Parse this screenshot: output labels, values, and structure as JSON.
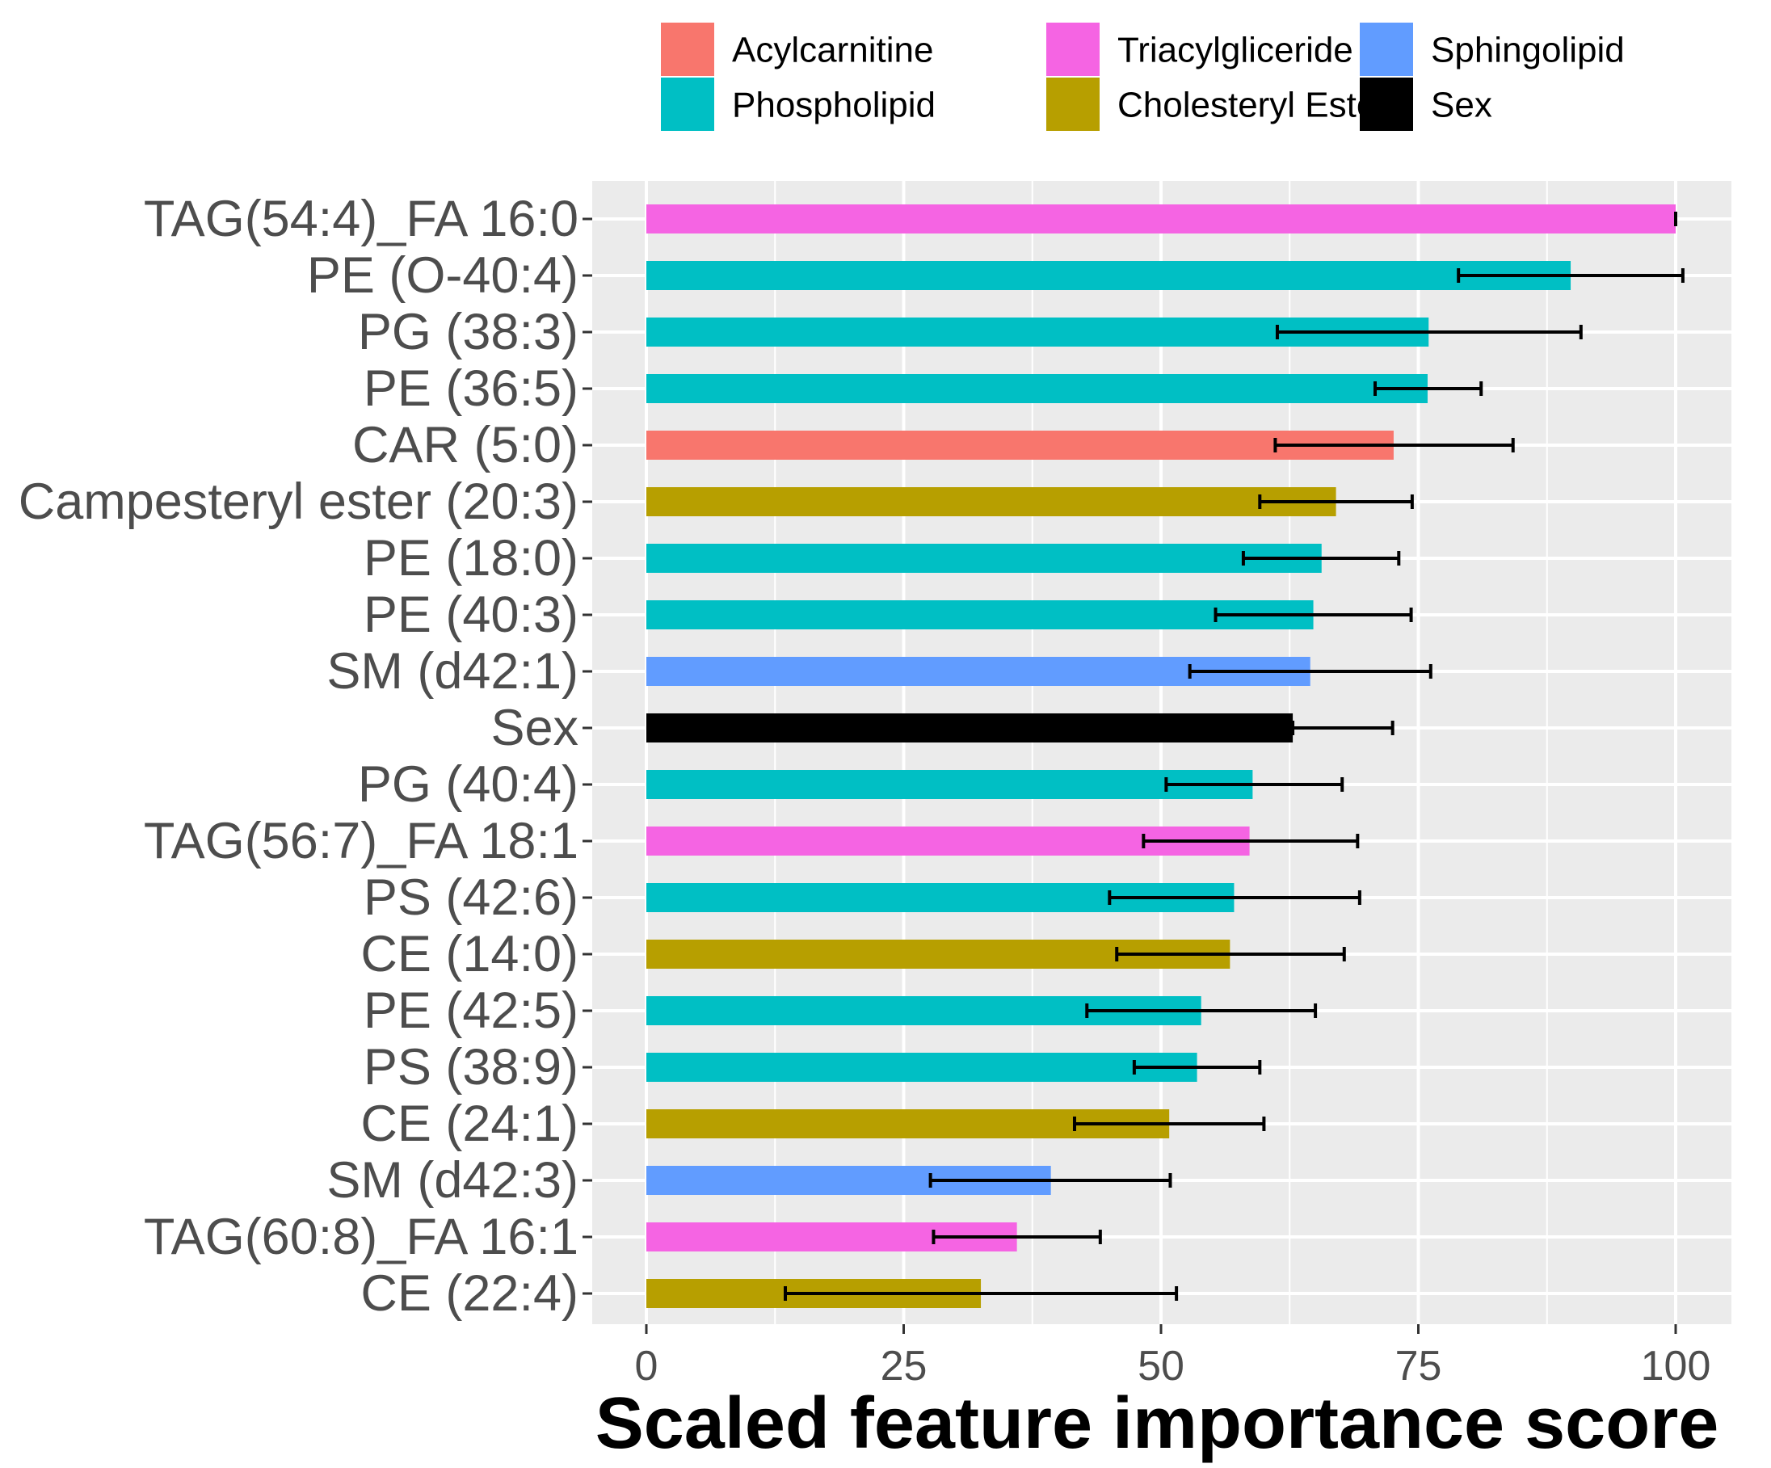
{
  "chart_data": {
    "type": "bar",
    "orientation": "horizontal",
    "title": "",
    "xlabel": "Scaled feature importance score",
    "ylabel": "",
    "xlim": [
      -5,
      106
    ],
    "xticks": [
      0,
      25,
      50,
      75,
      100
    ],
    "grid": true,
    "legend_position": "top",
    "legend": [
      {
        "name": "Acylcarnitine",
        "color": "#F8766D"
      },
      {
        "name": "Phospholipid",
        "color": "#00BFC4"
      },
      {
        "name": "Triacylgliceride",
        "color": "#F564E3"
      },
      {
        "name": "Cholesteryl Ester",
        "color": "#B79F00"
      },
      {
        "name": "Sphingolipid",
        "color": "#619CFF"
      },
      {
        "name": "Sex",
        "color": "#000000"
      }
    ],
    "bars": [
      {
        "label": "TAG(54:4)_FA 16:0",
        "value": 100,
        "err_low": 100,
        "err_high": 100,
        "category": "Triacylgliceride"
      },
      {
        "label": "PE (O-40:4)",
        "value": 89.8,
        "err_low": 78.9,
        "err_high": 100.7,
        "category": "Phospholipid"
      },
      {
        "label": "PG (38:3)",
        "value": 76.0,
        "err_low": 61.3,
        "err_high": 90.8,
        "category": "Phospholipid"
      },
      {
        "label": "PE (36:5)",
        "value": 75.9,
        "err_low": 70.8,
        "err_high": 81.1,
        "category": "Phospholipid"
      },
      {
        "label": "CAR (5:0)",
        "value": 72.6,
        "err_low": 61.1,
        "err_high": 84.2,
        "category": "Acylcarnitine"
      },
      {
        "label": "Campesteryl ester (20:3)",
        "value": 67.0,
        "err_low": 59.6,
        "err_high": 74.4,
        "category": "Cholesteryl Ester"
      },
      {
        "label": "PE (18:0)",
        "value": 65.6,
        "err_low": 58.0,
        "err_high": 73.1,
        "category": "Phospholipid"
      },
      {
        "label": "PE (40:3)",
        "value": 64.8,
        "err_low": 55.3,
        "err_high": 74.3,
        "category": "Phospholipid"
      },
      {
        "label": "SM (d42:1)",
        "value": 64.5,
        "err_low": 52.8,
        "err_high": 76.2,
        "category": "Sphingolipid"
      },
      {
        "label": "Sex",
        "value": 62.8,
        "err_low": 62.8,
        "err_high": 72.5,
        "category": "Sex"
      },
      {
        "label": "PG (40:4)",
        "value": 58.9,
        "err_low": 50.5,
        "err_high": 67.6,
        "category": "Phospholipid"
      },
      {
        "label": "TAG(56:7)_FA 18:1",
        "value": 58.6,
        "err_low": 48.3,
        "err_high": 69.1,
        "category": "Triacylgliceride"
      },
      {
        "label": "PS (42:6)",
        "value": 57.1,
        "err_low": 45.0,
        "err_high": 69.3,
        "category": "Phospholipid"
      },
      {
        "label": "CE (14:0)",
        "value": 56.7,
        "err_low": 45.7,
        "err_high": 67.8,
        "category": "Cholesteryl Ester"
      },
      {
        "label": "PE (42:5)",
        "value": 53.9,
        "err_low": 42.8,
        "err_high": 65.0,
        "category": "Phospholipid"
      },
      {
        "label": "PS (38:9)",
        "value": 53.5,
        "err_low": 47.4,
        "err_high": 59.6,
        "category": "Phospholipid"
      },
      {
        "label": "CE (24:1)",
        "value": 50.8,
        "err_low": 41.6,
        "err_high": 60.0,
        "category": "Cholesteryl Ester"
      },
      {
        "label": "SM (d42:3)",
        "value": 39.3,
        "err_low": 27.6,
        "err_high": 50.9,
        "category": "Sphingolipid"
      },
      {
        "label": "TAG(60:8)_FA 16:1",
        "value": 36.0,
        "err_low": 27.9,
        "err_high": 44.1,
        "category": "Triacylgliceride"
      },
      {
        "label": "CE (22:4)",
        "value": 32.5,
        "err_low": 13.5,
        "err_high": 51.5,
        "category": "Cholesteryl Ester"
      }
    ]
  }
}
